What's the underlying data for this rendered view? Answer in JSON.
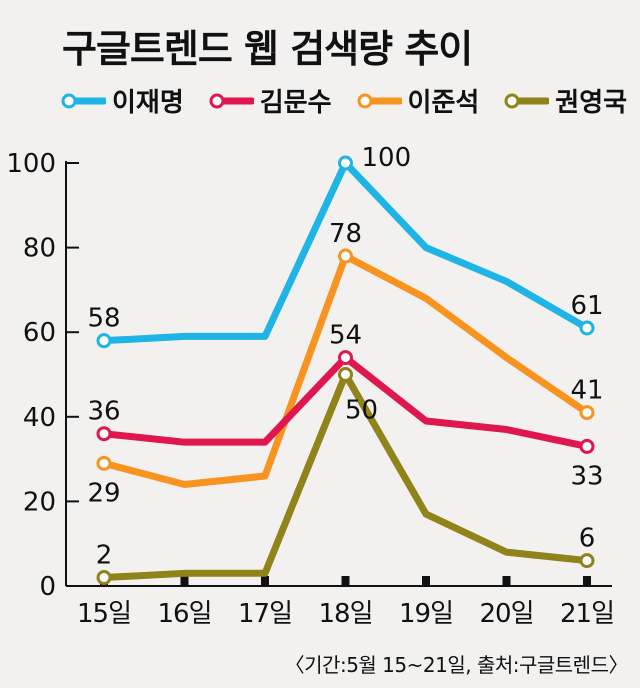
{
  "chart_data": {
    "type": "line",
    "title": "구글트렌드 웹 검색량 추이",
    "categories": [
      "15일",
      "16일",
      "17일",
      "18일",
      "19일",
      "20일",
      "21일"
    ],
    "ylim": [
      0,
      100
    ],
    "yticks": [
      0,
      20,
      40,
      60,
      80,
      100
    ],
    "grid": false,
    "legend_position": "top",
    "series": [
      {
        "name": "이재명",
        "color": "#1eb4e6",
        "values": [
          58,
          59,
          59,
          100,
          80,
          72,
          61
        ],
        "labels": [
          {
            "index": 0,
            "text": "58",
            "pos": "above"
          },
          {
            "index": 3,
            "text": "100",
            "pos": "right"
          },
          {
            "index": 6,
            "text": "61",
            "pos": "above"
          }
        ]
      },
      {
        "name": "김문수",
        "color": "#e0174f",
        "values": [
          36,
          34,
          34,
          54,
          39,
          37,
          33
        ],
        "labels": [
          {
            "index": 0,
            "text": "36",
            "pos": "above"
          },
          {
            "index": 3,
            "text": "54",
            "pos": "above"
          },
          {
            "index": 6,
            "text": "33",
            "pos": "below"
          }
        ]
      },
      {
        "name": "이준석",
        "color": "#f7931e",
        "values": [
          29,
          24,
          26,
          78,
          68,
          54,
          41
        ],
        "labels": [
          {
            "index": 0,
            "text": "29",
            "pos": "below"
          },
          {
            "index": 3,
            "text": "78",
            "pos": "above"
          },
          {
            "index": 6,
            "text": "41",
            "pos": "above"
          }
        ]
      },
      {
        "name": "권영국",
        "color": "#8f8319",
        "values": [
          2,
          3,
          3,
          50,
          17,
          8,
          6
        ],
        "labels": [
          {
            "index": 0,
            "text": "2",
            "pos": "above"
          },
          {
            "index": 3,
            "text": "50",
            "pos": "below-right"
          },
          {
            "index": 6,
            "text": "6",
            "pos": "above"
          }
        ]
      }
    ],
    "source": "〈기간:5월 15~21일, 출처:구글트렌드〉"
  }
}
